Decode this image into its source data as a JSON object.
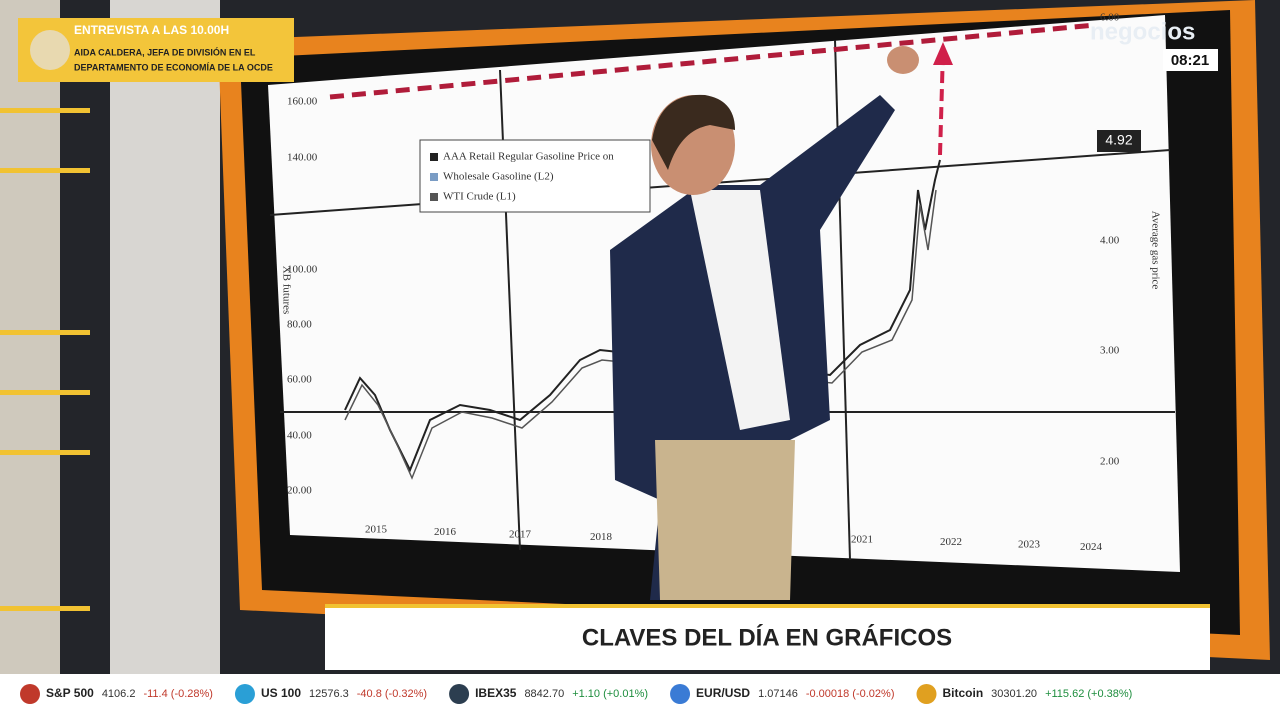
{
  "banner": {
    "title": "ENTREVISTA A LAS 10.00H",
    "lines": [
      "AIDA CALDERA, JEFA DE DIVISIÓN EN EL",
      "DEPARTAMENTO DE ECONOMÍA DE LA OCDE"
    ]
  },
  "brand": {
    "logo": "negocios",
    "clock": "08:21"
  },
  "screen_chart": {
    "left_axis_label": "XB futures",
    "left_ticks": [
      "160.00",
      "140.00",
      "100.00",
      "80.00",
      "60.00",
      "40.00",
      "20.00"
    ],
    "right_axis_label": "Average gas price",
    "right_ticks": [
      "6.00",
      "4.00",
      "3.00",
      "2.00"
    ],
    "right_tag": "4.92",
    "legend": [
      "AAA Retail Regular Gasoline Price on",
      "Wholesale Gasoline (L2)",
      "WTI Crude (L1)"
    ],
    "years": [
      "2015",
      "2016",
      "2017",
      "2018",
      "2021",
      "2022",
      "2023",
      "2024"
    ]
  },
  "lower_third": {
    "title": "CLAVES DEL DÍA EN GRÁFICOS"
  },
  "ticker": [
    {
      "name": "S&P 500",
      "value": "4106.2",
      "change": "-11.4 (-0.28%)"
    },
    {
      "name": "US 100",
      "value": "12576.3",
      "change": "-40.8 (-0.32%)"
    },
    {
      "name": "IBEX35",
      "value": "8842.70",
      "change": "+1.10 (+0.01%)"
    },
    {
      "name": "EUR/USD",
      "value": "1.07146",
      "change": "-0.00018 (-0.02%)"
    },
    {
      "name": "Bitcoin",
      "value": "30301.20",
      "change": "+115.62 (+0.38%)"
    }
  ]
}
